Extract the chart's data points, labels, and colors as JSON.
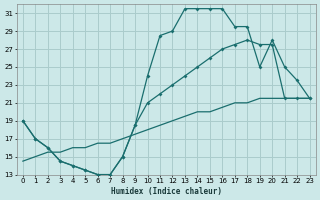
{
  "xlabel": "Humidex (Indice chaleur)",
  "bg_color": "#cce8e8",
  "grid_color": "#aacccc",
  "line_color": "#1a6e6e",
  "ylim": [
    13,
    32
  ],
  "xlim": [
    -0.5,
    23.5
  ],
  "yticks": [
    13,
    15,
    17,
    19,
    21,
    23,
    25,
    27,
    29,
    31
  ],
  "xticks": [
    0,
    1,
    2,
    3,
    4,
    5,
    6,
    7,
    8,
    9,
    10,
    11,
    12,
    13,
    14,
    15,
    16,
    17,
    18,
    19,
    20,
    21,
    22,
    23
  ],
  "line1_x": [
    0,
    1,
    2,
    3,
    4,
    5,
    6,
    7,
    8,
    9,
    10,
    11,
    12,
    13,
    14,
    15,
    16,
    17,
    18,
    19,
    20,
    21,
    22,
    23
  ],
  "line1_y": [
    19,
    17,
    16,
    14.5,
    14,
    13.5,
    13,
    13,
    15,
    18.5,
    24,
    28.5,
    29,
    31.5,
    31.5,
    31.5,
    31.5,
    29.5,
    29.5,
    25,
    28,
    25,
    23.5,
    21.5
  ],
  "line2_x": [
    0,
    1,
    2,
    3,
    4,
    5,
    6,
    7,
    8,
    9,
    10,
    11,
    12,
    13,
    14,
    15,
    16,
    17,
    18,
    19,
    20,
    21,
    22,
    23
  ],
  "line2_y": [
    19,
    17,
    16,
    14.5,
    14,
    13.5,
    13,
    13,
    15,
    18.5,
    21,
    22,
    23,
    24,
    25,
    26,
    27,
    27.5,
    28,
    27.5,
    27.5,
    21.5,
    21.5,
    21.5
  ],
  "line3_x": [
    0,
    1,
    2,
    3,
    4,
    5,
    6,
    7,
    8,
    9,
    10,
    11,
    12,
    13,
    14,
    15,
    16,
    17,
    18,
    19,
    20,
    21,
    22,
    23
  ],
  "line3_y": [
    14.5,
    15,
    15.5,
    15.5,
    16,
    16,
    16.5,
    16.5,
    17,
    17.5,
    18,
    18.5,
    19,
    19.5,
    20,
    20,
    20.5,
    21,
    21,
    21.5,
    21.5,
    21.5,
    21.5,
    21.5
  ]
}
